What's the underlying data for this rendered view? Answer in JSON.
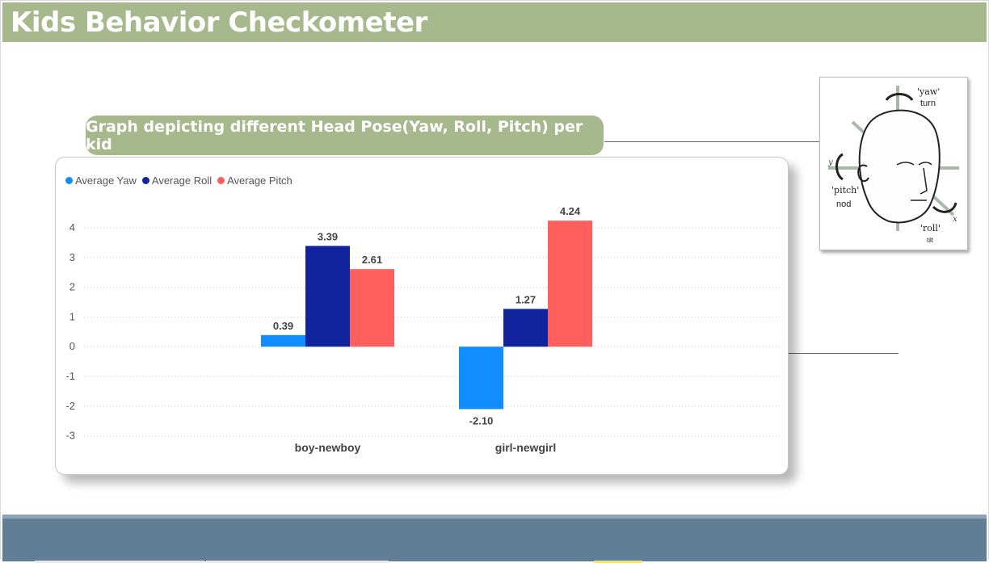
{
  "header": {
    "title": "Kids Behavior Checkometer"
  },
  "subtitle": "Graph depicting different Head Pose(Yaw, Roll, Pitch)  per kid",
  "colors": {
    "title_bar": "#a7b88d",
    "footer": "#607e95",
    "yaw": "#118dff",
    "roll": "#12239e",
    "pitch": "#ff5f5d"
  },
  "head_diagram": {
    "labels": {
      "yaw": "'yaw'",
      "turn": "turn",
      "pitch": "'pitch'",
      "nod": "nod",
      "roll": "'roll'",
      "tilt": "tilt",
      "y": "y",
      "x": "x"
    }
  },
  "chart_data": {
    "type": "bar",
    "categories": [
      "boy-newboy",
      "girl-newgirl"
    ],
    "series": [
      {
        "name": "Average Yaw",
        "values": [
          0.39,
          -2.1
        ],
        "color": "#118dff"
      },
      {
        "name": "Average Roll",
        "values": [
          3.39,
          1.27
        ],
        "color": "#12239e"
      },
      {
        "name": "Average Pitch",
        "values": [
          2.61,
          4.24
        ],
        "color": "#ff5f5d"
      }
    ],
    "value_labels": [
      [
        "0.39",
        "-2.10"
      ],
      [
        "3.39",
        "1.27"
      ],
      [
        "2.61",
        "4.24"
      ]
    ],
    "y_ticks": [
      "4",
      "3",
      "2",
      "1",
      "0",
      "-1",
      "-2",
      "-3"
    ],
    "ylim": [
      -3,
      4
    ],
    "grid": true,
    "legend": "top-left"
  }
}
